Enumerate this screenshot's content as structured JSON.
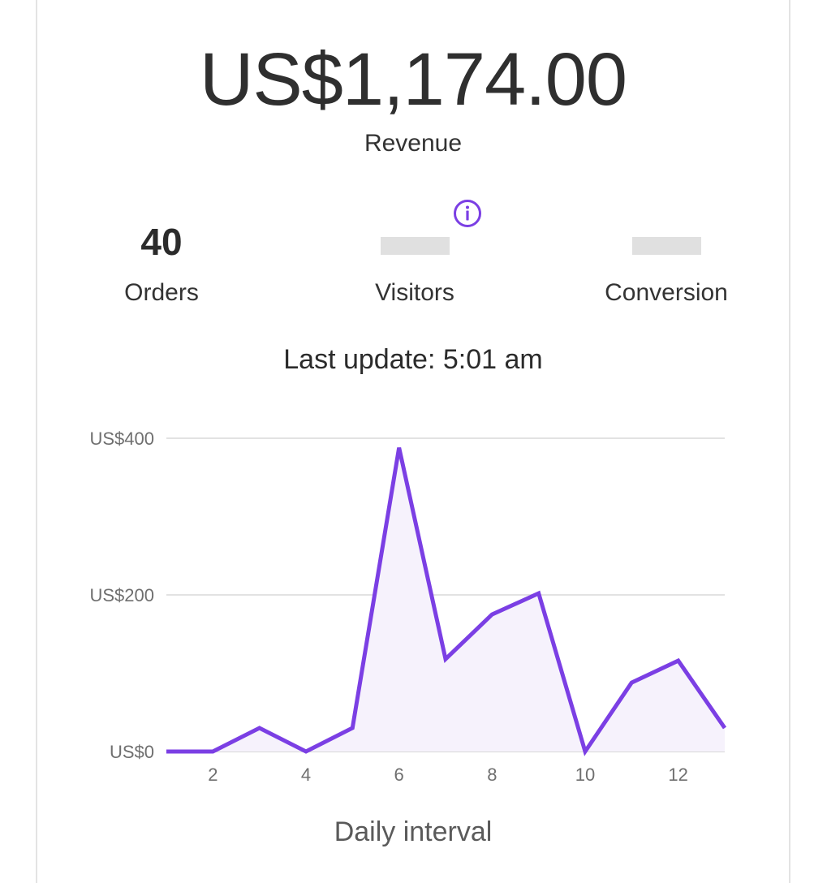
{
  "summary": {
    "revenue_amount": "US$1,174.00",
    "revenue_label": "Revenue",
    "last_update": "Last update: 5:01 am"
  },
  "stats": {
    "orders": {
      "value": "40",
      "label": "Orders"
    },
    "visitors": {
      "value": "",
      "label": "Visitors"
    },
    "conversion": {
      "value": "",
      "label": "Conversion"
    }
  },
  "icons": {
    "info": "info-icon"
  },
  "colors": {
    "accent": "#7B3FE4",
    "area_fill": "#F6F2FC",
    "grid": "#E2E2E2"
  },
  "chart_data": {
    "type": "line",
    "x": [
      1,
      2,
      3,
      4,
      5,
      6,
      7,
      8,
      9,
      10,
      11,
      12,
      13
    ],
    "series": [
      {
        "values": [
          0,
          0,
          30,
          0,
          30,
          388,
          118,
          175,
          202,
          0,
          88,
          116,
          30
        ]
      }
    ],
    "x_tick_labels": [
      "2",
      "4",
      "6",
      "8",
      "10",
      "12"
    ],
    "x_tick_values": [
      2,
      4,
      6,
      8,
      10,
      12
    ],
    "y_tick_labels": [
      "US$0",
      "US$200",
      "US$400"
    ],
    "y_tick_values": [
      0,
      200,
      400
    ],
    "xlabel": "Daily interval",
    "ylabel": "",
    "xlim": [
      1,
      13
    ],
    "ylim": [
      0,
      400
    ],
    "grid": true,
    "area_fill": true
  }
}
